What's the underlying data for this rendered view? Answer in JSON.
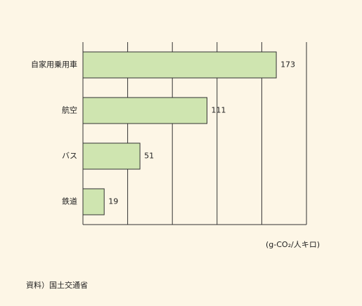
{
  "chart_data": {
    "type": "bar",
    "orientation": "horizontal",
    "categories": [
      "自家用乗用車",
      "航空",
      "バス",
      "鉄道"
    ],
    "values": [
      173,
      111,
      51,
      19
    ],
    "color": "#cfe5b0",
    "xlim": [
      0,
      200
    ],
    "xticks": [
      0,
      40,
      80,
      120,
      160,
      200
    ],
    "grid": true,
    "unit_label": "(g-CO₂/人キロ)",
    "source": "資料）国土交通省"
  }
}
